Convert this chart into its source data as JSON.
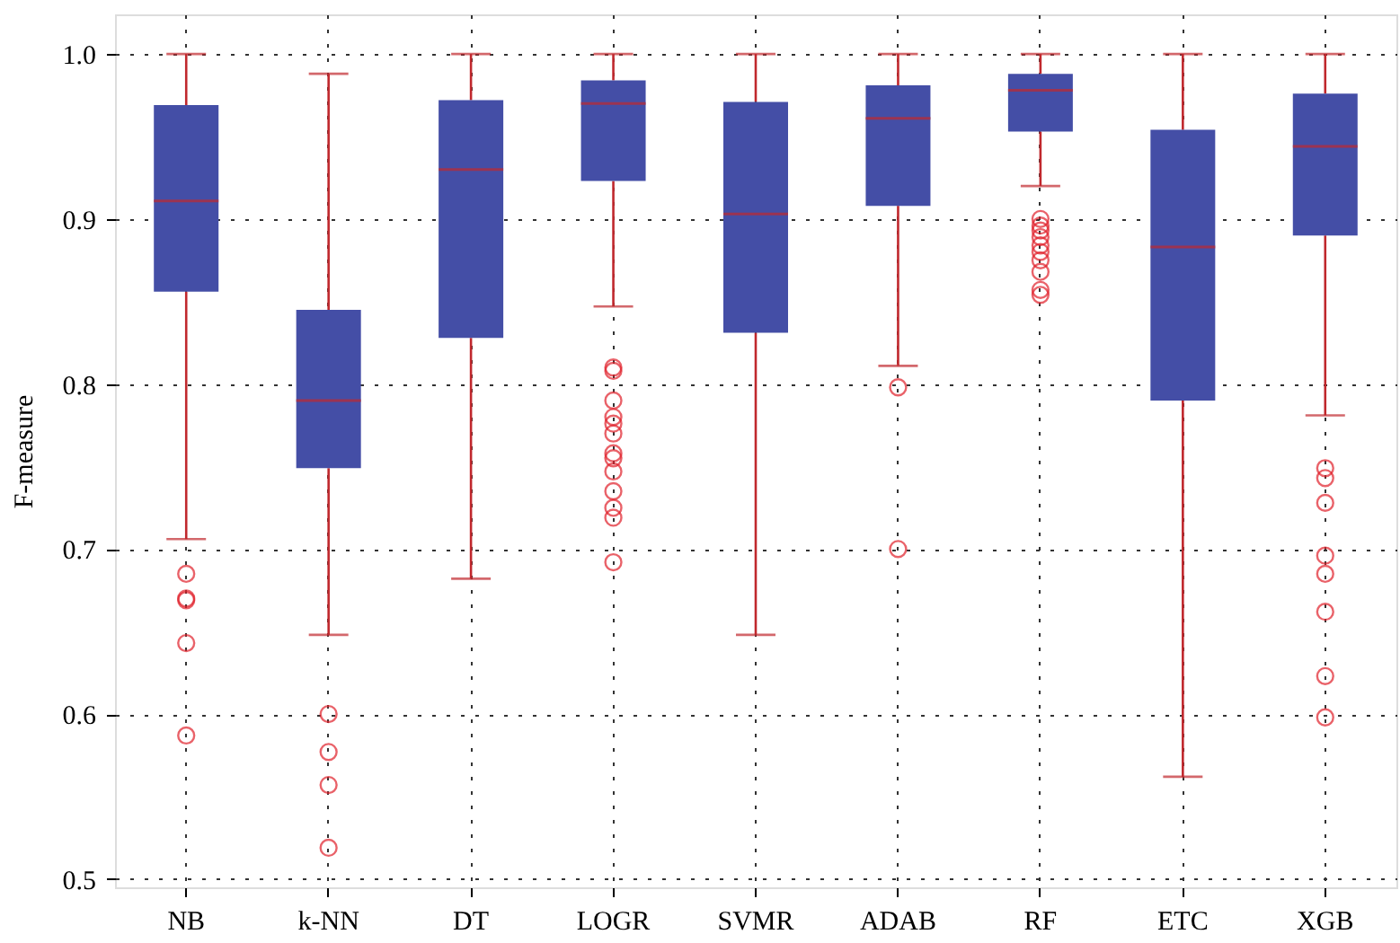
{
  "chart_data": {
    "type": "box",
    "ylabel": "F-measure",
    "categories": [
      "NB",
      "k-NN",
      "DT",
      "LOGR",
      "SVMR",
      "ADAB",
      "RF",
      "ETC",
      "XGB"
    ],
    "ylim": [
      0.495,
      1.024
    ],
    "yticks": [
      {
        "value": 0.5,
        "label": "0.5"
      },
      {
        "value": 0.6,
        "label": "0.6"
      },
      {
        "value": 0.7,
        "label": "0.7"
      },
      {
        "value": 0.8,
        "label": "0.8"
      },
      {
        "value": 0.9,
        "label": "0.9"
      },
      {
        "value": 1.0,
        "label": "1.0"
      }
    ],
    "grid": true,
    "color": "#444ea6",
    "boxes": [
      {
        "low": 0.706,
        "q1": 0.856,
        "median": 0.911,
        "q3": 0.969,
        "high": 1.0,
        "outliers": [
          0.685,
          0.67,
          0.669,
          0.643,
          0.587
        ]
      },
      {
        "low": 0.648,
        "q1": 0.749,
        "median": 0.79,
        "q3": 0.845,
        "high": 0.988,
        "outliers": [
          0.6,
          0.577,
          0.557,
          0.519
        ]
      },
      {
        "low": 0.682,
        "q1": 0.828,
        "median": 0.93,
        "q3": 0.972,
        "high": 1.0
      },
      {
        "low": 0.847,
        "q1": 0.923,
        "median": 0.97,
        "q3": 0.984,
        "high": 1.0,
        "outliers": [
          0.81,
          0.808,
          0.79,
          0.78,
          0.776,
          0.77,
          0.758,
          0.755,
          0.747,
          0.735,
          0.725,
          0.719,
          0.692
        ]
      },
      {
        "low": 0.648,
        "q1": 0.831,
        "median": 0.903,
        "q3": 0.971,
        "high": 1.0
      },
      {
        "low": 0.811,
        "q1": 0.908,
        "median": 0.961,
        "q3": 0.981,
        "high": 1.0,
        "outliers": [
          0.798,
          0.7
        ]
      },
      {
        "low": 0.92,
        "q1": 0.953,
        "median": 0.978,
        "q3": 0.988,
        "high": 1.0,
        "outliers": [
          0.9,
          0.896,
          0.893,
          0.889,
          0.884,
          0.88,
          0.875,
          0.868,
          0.857,
          0.854
        ]
      },
      {
        "low": 0.562,
        "q1": 0.79,
        "median": 0.883,
        "q3": 0.954,
        "high": 1.0
      },
      {
        "low": 0.781,
        "q1": 0.89,
        "median": 0.944,
        "q3": 0.976,
        "high": 1.0,
        "outliers": [
          0.749,
          0.743,
          0.728,
          0.696,
          0.685,
          0.662,
          0.623,
          0.598
        ]
      }
    ]
  }
}
